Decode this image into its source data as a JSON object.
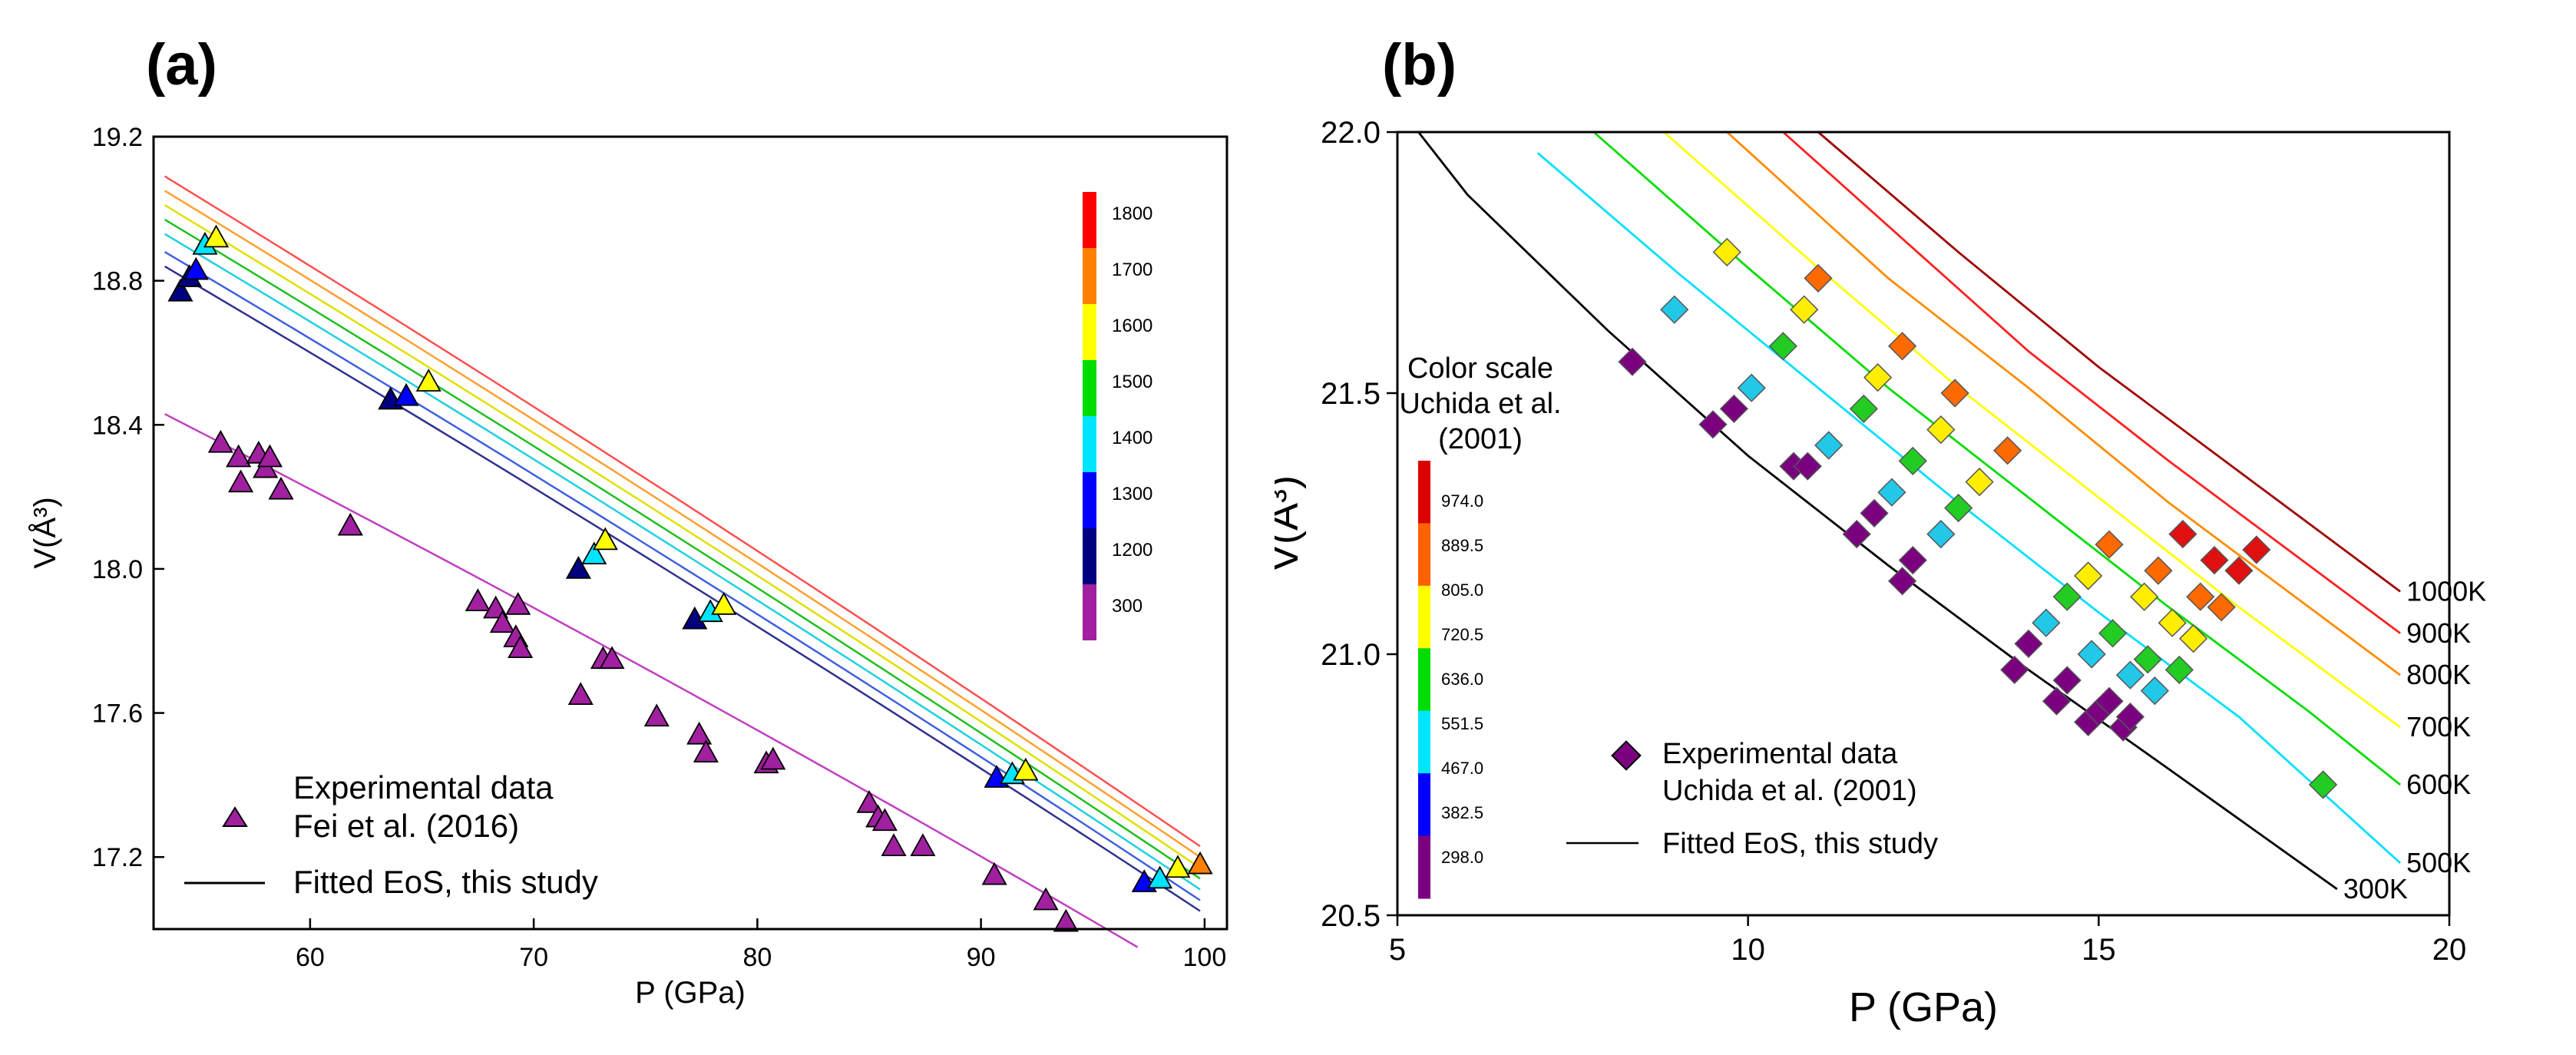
{
  "chart_data": [
    {
      "type": "scatter",
      "panel_label": "(a)",
      "xlabel": "P (GPa)",
      "ylabel": "V(Å³)",
      "xlim": [
        53,
        101
      ],
      "ylim": [
        17.0,
        19.2
      ],
      "xticks": [
        60,
        70,
        80,
        90,
        100
      ],
      "yticks": [
        17.2,
        17.6,
        18.0,
        18.4,
        18.8,
        19.2
      ],
      "xtick_labels": [
        "60",
        "70",
        "80",
        "90",
        "100"
      ],
      "ytick_labels": [
        "17.2",
        "17.6",
        "18.0",
        "18.4",
        "18.8",
        "19.2"
      ],
      "legend": {
        "marker_label_1": "Experimental data",
        "marker_label_2": "Fei et al. (2016)",
        "line_label": "Fitted EoS, this study"
      },
      "colorbar": {
        "labels": [
          "1800",
          "1700",
          "1600",
          "1500",
          "1400",
          "1300",
          "1200",
          "300"
        ],
        "colors": [
          "#ff0000",
          "#ff7f00",
          "#ffff00",
          "#00dd00",
          "#00e5ff",
          "#0000ff",
          "#000080",
          "#a020a0"
        ]
      },
      "fitted_curves": [
        {
          "T": 300,
          "color": "#c040c0",
          "p0": [
            53.5,
            18.43
          ],
          "p1": [
            97.0,
            16.95
          ]
        },
        {
          "T": 1200,
          "color": "#303090",
          "p0": [
            53.5,
            18.84
          ],
          "p1": [
            99.8,
            17.05
          ]
        },
        {
          "T": 1300,
          "color": "#4060e0",
          "p0": [
            53.5,
            18.88
          ],
          "p1": [
            99.8,
            17.08
          ]
        },
        {
          "T": 1400,
          "color": "#20d0e0",
          "p0": [
            53.5,
            18.93
          ],
          "p1": [
            99.8,
            17.11
          ]
        },
        {
          "T": 1500,
          "color": "#20c020",
          "p0": [
            53.5,
            18.97
          ],
          "p1": [
            99.8,
            17.14
          ]
        },
        {
          "T": 1600,
          "color": "#e0e000",
          "p0": [
            53.5,
            19.01
          ],
          "p1": [
            99.8,
            17.17
          ]
        },
        {
          "T": 1700,
          "color": "#ffa030",
          "p0": [
            53.5,
            19.05
          ],
          "p1": [
            99.8,
            17.2
          ]
        },
        {
          "T": 1800,
          "color": "#ff5050",
          "p0": [
            53.5,
            19.09
          ],
          "p1": [
            99.8,
            17.23
          ]
        }
      ],
      "points": [
        {
          "x": 54.2,
          "y": 18.77,
          "T": 1200
        },
        {
          "x": 54.6,
          "y": 18.81,
          "T": 1200
        },
        {
          "x": 54.9,
          "y": 18.83,
          "T": 1300
        },
        {
          "x": 55.3,
          "y": 18.9,
          "T": 1400
        },
        {
          "x": 55.8,
          "y": 18.92,
          "T": 1600
        },
        {
          "x": 63.6,
          "y": 18.47,
          "T": 1200
        },
        {
          "x": 64.3,
          "y": 18.48,
          "T": 1300
        },
        {
          "x": 65.3,
          "y": 18.52,
          "T": 1600
        },
        {
          "x": 72.0,
          "y": 18.0,
          "T": 1200
        },
        {
          "x": 72.7,
          "y": 18.04,
          "T": 1400
        },
        {
          "x": 73.2,
          "y": 18.08,
          "T": 1600
        },
        {
          "x": 77.2,
          "y": 17.86,
          "T": 1200
        },
        {
          "x": 77.9,
          "y": 17.88,
          "T": 1400
        },
        {
          "x": 78.5,
          "y": 17.9,
          "T": 1600
        },
        {
          "x": 90.7,
          "y": 17.42,
          "T": 1300
        },
        {
          "x": 91.4,
          "y": 17.43,
          "T": 1400
        },
        {
          "x": 92.0,
          "y": 17.44,
          "T": 1600
        },
        {
          "x": 97.3,
          "y": 17.13,
          "T": 1300
        },
        {
          "x": 98.0,
          "y": 17.14,
          "T": 1400
        },
        {
          "x": 98.8,
          "y": 17.17,
          "T": 1600
        },
        {
          "x": 99.8,
          "y": 17.18,
          "T": 1700
        },
        {
          "x": 56.0,
          "y": 18.35,
          "T": 300
        },
        {
          "x": 56.8,
          "y": 18.31,
          "T": 300
        },
        {
          "x": 56.9,
          "y": 18.24,
          "T": 300
        },
        {
          "x": 57.7,
          "y": 18.32,
          "T": 300
        },
        {
          "x": 58.0,
          "y": 18.28,
          "T": 300
        },
        {
          "x": 58.2,
          "y": 18.31,
          "T": 300
        },
        {
          "x": 58.7,
          "y": 18.22,
          "T": 300
        },
        {
          "x": 61.8,
          "y": 18.12,
          "T": 300
        },
        {
          "x": 67.5,
          "y": 17.91,
          "T": 300
        },
        {
          "x": 68.3,
          "y": 17.89,
          "T": 300
        },
        {
          "x": 68.6,
          "y": 17.85,
          "T": 300
        },
        {
          "x": 69.2,
          "y": 17.81,
          "T": 300
        },
        {
          "x": 69.4,
          "y": 17.78,
          "T": 300
        },
        {
          "x": 69.3,
          "y": 17.9,
          "T": 300
        },
        {
          "x": 72.1,
          "y": 17.65,
          "T": 300
        },
        {
          "x": 73.1,
          "y": 17.75,
          "T": 300
        },
        {
          "x": 73.5,
          "y": 17.75,
          "T": 300
        },
        {
          "x": 75.5,
          "y": 17.59,
          "T": 300
        },
        {
          "x": 77.4,
          "y": 17.54,
          "T": 300
        },
        {
          "x": 77.7,
          "y": 17.49,
          "T": 300
        },
        {
          "x": 80.4,
          "y": 17.46,
          "T": 300
        },
        {
          "x": 80.7,
          "y": 17.47,
          "T": 300
        },
        {
          "x": 85.0,
          "y": 17.35,
          "T": 300
        },
        {
          "x": 85.4,
          "y": 17.31,
          "T": 300
        },
        {
          "x": 85.7,
          "y": 17.3,
          "T": 300
        },
        {
          "x": 86.1,
          "y": 17.23,
          "T": 300
        },
        {
          "x": 87.4,
          "y": 17.23,
          "T": 300
        },
        {
          "x": 90.6,
          "y": 17.15,
          "T": 300
        },
        {
          "x": 92.9,
          "y": 17.08,
          "T": 300
        },
        {
          "x": 93.8,
          "y": 17.02,
          "T": 300
        }
      ]
    },
    {
      "type": "scatter",
      "panel_label": "(b)",
      "xlabel": "P (GPa)",
      "ylabel": "V(Å³)",
      "xlim": [
        5,
        20
      ],
      "ylim": [
        20.5,
        22.0
      ],
      "xticks": [
        5,
        10,
        15,
        20
      ],
      "yticks": [
        20.5,
        21.0,
        21.5,
        22.0
      ],
      "xtick_labels": [
        "5",
        "10",
        "15",
        "20"
      ],
      "ytick_labels": [
        "20.5",
        "21.0",
        "21.5",
        "22.0"
      ],
      "legend": {
        "marker_label_1": "Experimental data",
        "marker_label_2": "Uchida et al. (2001)",
        "line_label": "Fitted EoS, this study"
      },
      "colorbar": {
        "title_1": "Color scale",
        "title_2": "Uchida et al.",
        "title_3": "(2001)",
        "labels": [
          "974.0",
          "889.5",
          "805.0",
          "720.5",
          "636.0",
          "551.5",
          "467.0",
          "382.5",
          "298.0"
        ],
        "colors": [
          "#dd0000",
          "#ff6000",
          "#ffff00",
          "#00dd00",
          "#00e5ff",
          "#0000ff",
          "#7b0080"
        ]
      },
      "fitted_curves": [
        {
          "label": "300K",
          "color": "#000000",
          "points": [
            [
              5.3,
              22.0
            ],
            [
              6.0,
              21.88
            ],
            [
              8.0,
              21.62
            ],
            [
              10.0,
              21.38
            ],
            [
              12.0,
              21.17
            ],
            [
              14.0,
              20.97
            ],
            [
              16.0,
              20.78
            ],
            [
              18.4,
              20.55
            ]
          ]
        },
        {
          "label": "500K",
          "color": "#00e0ff",
          "points": [
            [
              7.0,
              21.96
            ],
            [
              9.0,
              21.73
            ],
            [
              11.0,
              21.51
            ],
            [
              13.0,
              21.29
            ],
            [
              15.0,
              21.08
            ],
            [
              17.0,
              20.88
            ],
            [
              19.3,
              20.6
            ]
          ]
        },
        {
          "label": "600K",
          "color": "#00dd00",
          "points": [
            [
              7.8,
              22.0
            ],
            [
              10.0,
              21.74
            ],
            [
              12.0,
              21.51
            ],
            [
              14.0,
              21.3
            ],
            [
              16.0,
              21.09
            ],
            [
              18.0,
              20.89
            ],
            [
              19.3,
              20.75
            ]
          ]
        },
        {
          "label": "700K",
          "color": "#ffff00",
          "points": [
            [
              8.8,
              22.0
            ],
            [
              11.0,
              21.74
            ],
            [
              13.0,
              21.51
            ],
            [
              15.0,
              21.3
            ],
            [
              17.0,
              21.09
            ],
            [
              19.3,
              20.86
            ]
          ]
        },
        {
          "label": "800K",
          "color": "#ff8c00",
          "points": [
            [
              9.7,
              22.0
            ],
            [
              12.0,
              21.72
            ],
            [
              14.0,
              21.51
            ],
            [
              16.0,
              21.29
            ],
            [
              18.0,
              21.09
            ],
            [
              19.3,
              20.96
            ]
          ]
        },
        {
          "label": "900K",
          "color": "#ff2020",
          "points": [
            [
              10.5,
              22.0
            ],
            [
              12.0,
              21.82
            ],
            [
              14.0,
              21.58
            ],
            [
              16.0,
              21.37
            ],
            [
              18.0,
              21.17
            ],
            [
              19.3,
              21.04
            ]
          ]
        },
        {
          "label": "1000K",
          "color": "#a00000",
          "points": [
            [
              11.0,
              22.0
            ],
            [
              13.0,
              21.77
            ],
            [
              15.0,
              21.55
            ],
            [
              17.0,
              21.35
            ],
            [
              19.3,
              21.12
            ]
          ]
        }
      ],
      "points": [
        {
          "x": 8.35,
          "y": 21.56,
          "c": "#7b0080"
        },
        {
          "x": 9.5,
          "y": 21.44,
          "c": "#7b0080"
        },
        {
          "x": 9.8,
          "y": 21.47,
          "c": "#7b0080"
        },
        {
          "x": 10.65,
          "y": 21.36,
          "c": "#7b0080"
        },
        {
          "x": 10.85,
          "y": 21.36,
          "c": "#7b0080"
        },
        {
          "x": 11.55,
          "y": 21.23,
          "c": "#7b0080"
        },
        {
          "x": 11.8,
          "y": 21.27,
          "c": "#7b0080"
        },
        {
          "x": 12.2,
          "y": 21.14,
          "c": "#7b0080"
        },
        {
          "x": 12.35,
          "y": 21.18,
          "c": "#7b0080"
        },
        {
          "x": 13.8,
          "y": 20.97,
          "c": "#7b0080"
        },
        {
          "x": 14.0,
          "y": 21.02,
          "c": "#7b0080"
        },
        {
          "x": 14.4,
          "y": 20.91,
          "c": "#7b0080"
        },
        {
          "x": 14.55,
          "y": 20.95,
          "c": "#7b0080"
        },
        {
          "x": 14.85,
          "y": 20.87,
          "c": "#7b0080"
        },
        {
          "x": 15.0,
          "y": 20.89,
          "c": "#7b0080"
        },
        {
          "x": 15.15,
          "y": 20.91,
          "c": "#7b0080"
        },
        {
          "x": 15.35,
          "y": 20.86,
          "c": "#7b0080"
        },
        {
          "x": 15.45,
          "y": 20.88,
          "c": "#7b0080"
        },
        {
          "x": 8.95,
          "y": 21.66,
          "c": "#22c8e8"
        },
        {
          "x": 10.05,
          "y": 21.51,
          "c": "#22c8e8"
        },
        {
          "x": 11.15,
          "y": 21.4,
          "c": "#22c8e8"
        },
        {
          "x": 12.05,
          "y": 21.31,
          "c": "#22c8e8"
        },
        {
          "x": 12.75,
          "y": 21.23,
          "c": "#22c8e8"
        },
        {
          "x": 14.25,
          "y": 21.06,
          "c": "#22c8e8"
        },
        {
          "x": 14.9,
          "y": 21.0,
          "c": "#22c8e8"
        },
        {
          "x": 15.45,
          "y": 20.96,
          "c": "#22c8e8"
        },
        {
          "x": 15.8,
          "y": 20.93,
          "c": "#22c8e8"
        },
        {
          "x": 10.5,
          "y": 21.59,
          "c": "#22cc22"
        },
        {
          "x": 11.65,
          "y": 21.47,
          "c": "#22cc22"
        },
        {
          "x": 12.35,
          "y": 21.37,
          "c": "#22cc22"
        },
        {
          "x": 13.0,
          "y": 21.28,
          "c": "#22cc22"
        },
        {
          "x": 14.55,
          "y": 21.11,
          "c": "#22cc22"
        },
        {
          "x": 15.2,
          "y": 21.04,
          "c": "#22cc22"
        },
        {
          "x": 15.7,
          "y": 20.99,
          "c": "#22cc22"
        },
        {
          "x": 16.15,
          "y": 20.97,
          "c": "#22cc22"
        },
        {
          "x": 18.2,
          "y": 20.75,
          "c": "#22cc22"
        },
        {
          "x": 9.7,
          "y": 21.77,
          "c": "#ffee00"
        },
        {
          "x": 10.8,
          "y": 21.66,
          "c": "#ffee00"
        },
        {
          "x": 11.85,
          "y": 21.53,
          "c": "#ffee00"
        },
        {
          "x": 12.75,
          "y": 21.43,
          "c": "#ffee00"
        },
        {
          "x": 13.3,
          "y": 21.33,
          "c": "#ffee00"
        },
        {
          "x": 14.85,
          "y": 21.15,
          "c": "#ffee00"
        },
        {
          "x": 15.65,
          "y": 21.11,
          "c": "#ffee00"
        },
        {
          "x": 16.05,
          "y": 21.06,
          "c": "#ffee00"
        },
        {
          "x": 16.35,
          "y": 21.03,
          "c": "#ffee00"
        },
        {
          "x": 11.0,
          "y": 21.72,
          "c": "#ff6a00"
        },
        {
          "x": 12.2,
          "y": 21.59,
          "c": "#ff6a00"
        },
        {
          "x": 12.95,
          "y": 21.5,
          "c": "#ff6a00"
        },
        {
          "x": 13.7,
          "y": 21.39,
          "c": "#ff6a00"
        },
        {
          "x": 15.15,
          "y": 21.21,
          "c": "#ff6a00"
        },
        {
          "x": 15.85,
          "y": 21.16,
          "c": "#ff6a00"
        },
        {
          "x": 16.45,
          "y": 21.11,
          "c": "#ff6a00"
        },
        {
          "x": 16.75,
          "y": 21.09,
          "c": "#ff6a00"
        },
        {
          "x": 16.2,
          "y": 21.23,
          "c": "#e01010"
        },
        {
          "x": 16.65,
          "y": 21.18,
          "c": "#e01010"
        },
        {
          "x": 17.0,
          "y": 21.16,
          "c": "#e01010"
        },
        {
          "x": 17.25,
          "y": 21.2,
          "c": "#e01010"
        }
      ]
    }
  ]
}
